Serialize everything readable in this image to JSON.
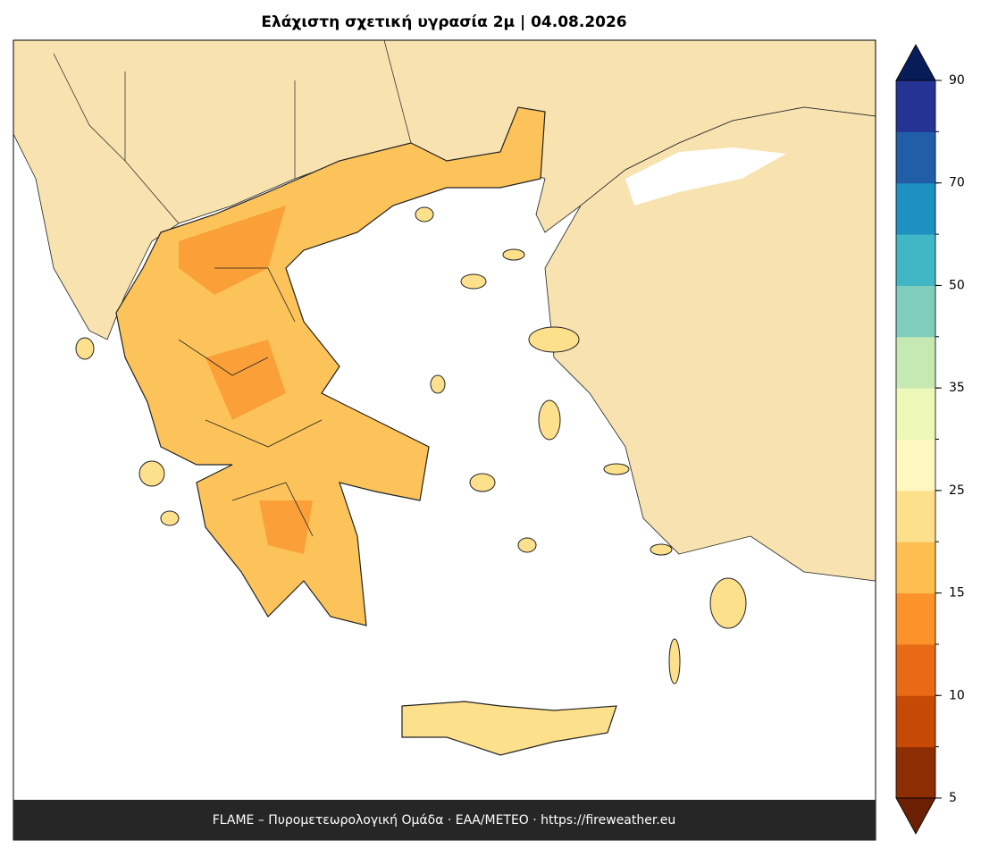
{
  "title": "Ελάχιστη σχετική υγρασία 2μ  |  04.08.2026",
  "footer": "FLAME – Πυρομετεωρολογική Ομάδα · ΕΑΑ/METEO · https://fireweather.eu",
  "colorbar": {
    "levels": [
      5,
      7.5,
      10,
      12.5,
      15,
      20,
      25,
      30,
      35,
      40,
      50,
      60,
      70,
      80,
      90
    ],
    "ticks": [
      5,
      10,
      15,
      25,
      35,
      50,
      70,
      90
    ],
    "colors": [
      "#8c2d04",
      "#c64a06",
      "#e86a17",
      "#fb922a",
      "#fdbf50",
      "#fde08c",
      "#fff6c0",
      "#ecf7b8",
      "#c6e9b4",
      "#7fcdbb",
      "#41b6c4",
      "#1d91c0",
      "#225ea8",
      "#253494"
    ],
    "under_color": "#6b2004",
    "over_color": "#081d58"
  }
}
